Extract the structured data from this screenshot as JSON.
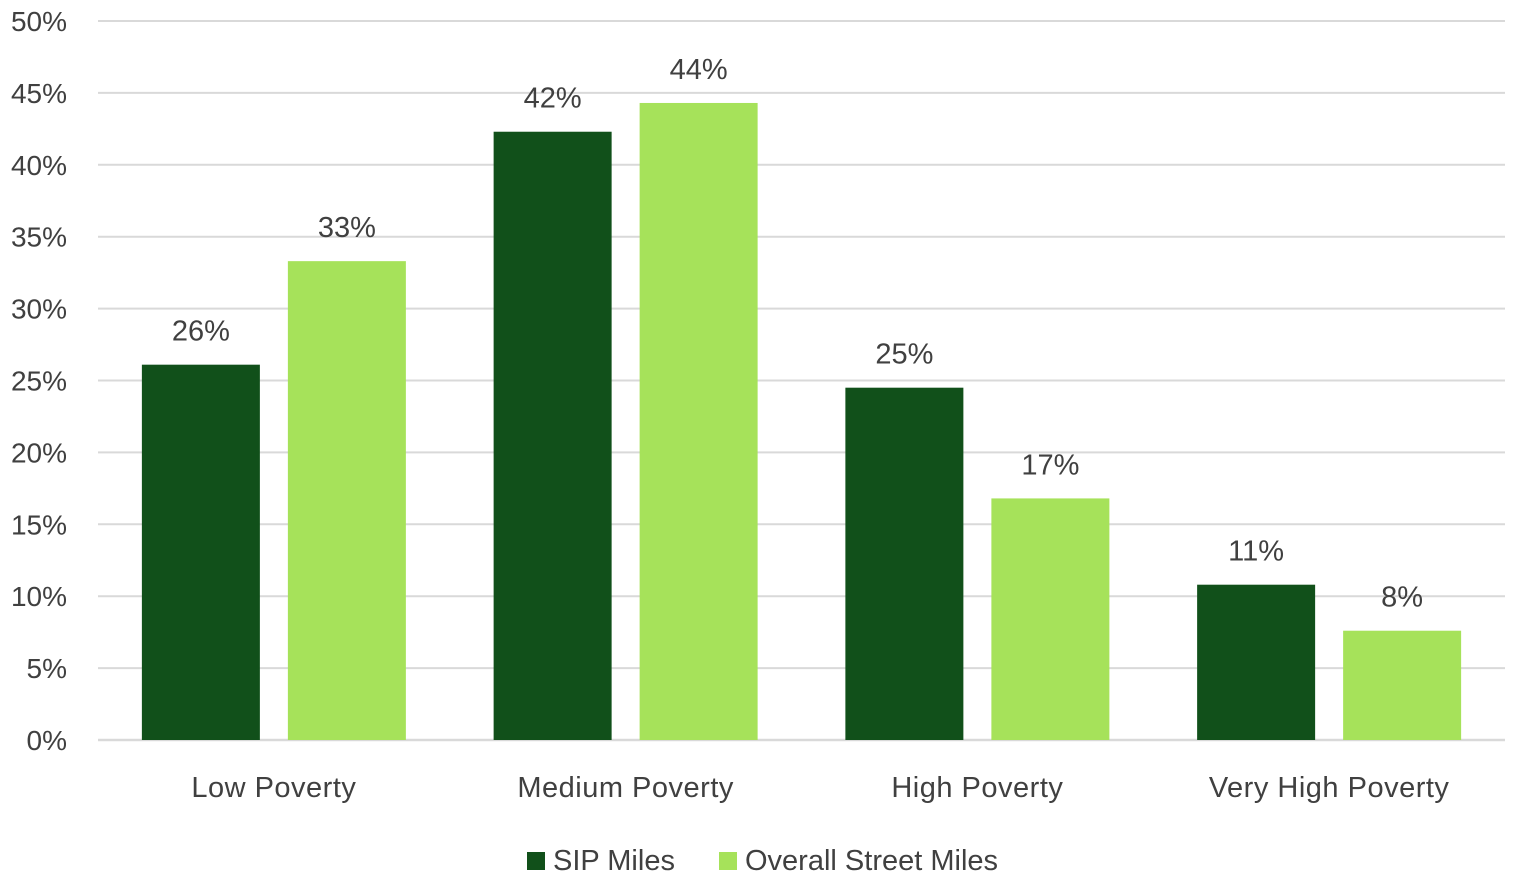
{
  "chart_data": {
    "type": "bar",
    "title": "",
    "xlabel": "",
    "ylabel": "",
    "categories": [
      "Low Poverty",
      "Medium Poverty",
      "High Poverty",
      "Very High Poverty"
    ],
    "series": [
      {
        "name": "SIP Miles",
        "color": "#11501a",
        "values": [
          26.1,
          42.3,
          24.5,
          10.8
        ],
        "labels": [
          "26%",
          "42%",
          "25%",
          "11%"
        ]
      },
      {
        "name": "Overall Street Miles",
        "color": "#a6e25a",
        "values": [
          33.3,
          44.3,
          16.8,
          7.6
        ],
        "labels": [
          "33%",
          "44%",
          "17%",
          "8%"
        ]
      }
    ],
    "ylim": [
      0,
      50
    ],
    "yticks": [
      0,
      5,
      10,
      15,
      20,
      25,
      30,
      35,
      40,
      45,
      50
    ],
    "ytick_labels": [
      "0%",
      "5%",
      "10%",
      "15%",
      "20%",
      "25%",
      "30%",
      "35%",
      "40%",
      "45%",
      "50%"
    ],
    "grid": true,
    "legend_position": "bottom",
    "gridline_color": "#d9d9d9"
  }
}
